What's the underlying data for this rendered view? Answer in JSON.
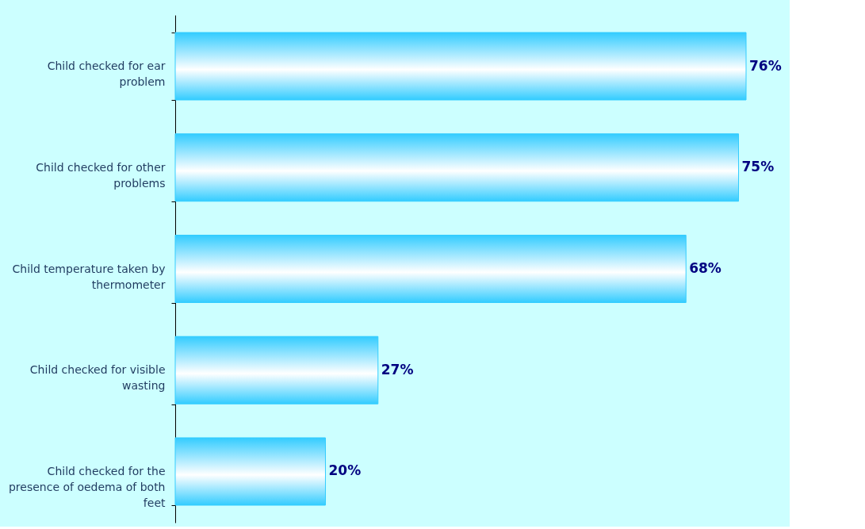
{
  "chart_data": {
    "type": "bar",
    "orientation": "horizontal",
    "categories": [
      "Child checked for ear problem",
      "Child checked for other problems",
      "Child temperature taken by thermometer",
      "Child checked for visible wasting",
      "Child checked for the presence of oedema of both feet"
    ],
    "values": [
      76,
      75,
      68,
      27,
      20
    ],
    "value_labels": [
      "76%",
      "75%",
      "68%",
      "27%",
      "20%"
    ],
    "color": "#33ccff"
  }
}
